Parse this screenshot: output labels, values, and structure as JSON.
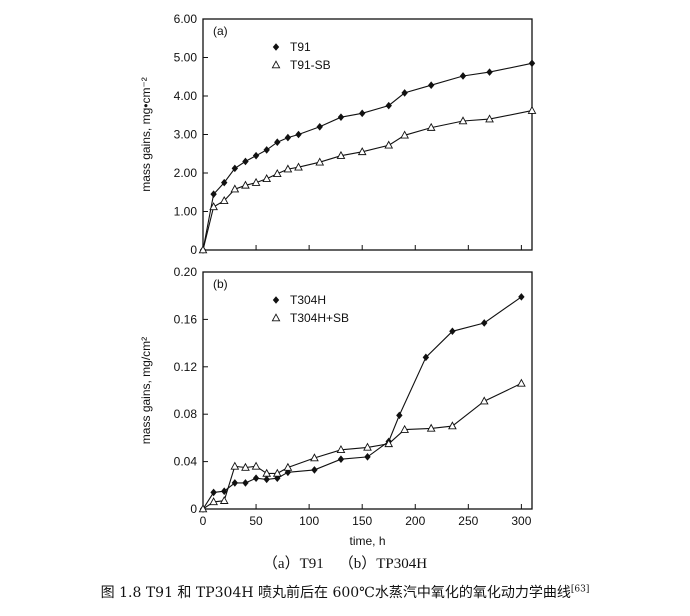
{
  "chart_data": [
    {
      "type": "line",
      "panel_label": "(a)",
      "xlabel": "",
      "ylabel": "mass gains, mg•cm⁻²",
      "xlim": [
        0,
        310
      ],
      "ylim": [
        0,
        6
      ],
      "yticks": [
        "0",
        "1.00",
        "2.00",
        "3.00",
        "4.00",
        "5.00",
        "6.00"
      ],
      "ytick_values": [
        0,
        1,
        2,
        3,
        4,
        5,
        6
      ],
      "xticks": [
        0,
        50,
        100,
        150,
        200,
        250,
        300
      ],
      "show_xtick_labels": false,
      "legend_position": "top-left",
      "series": [
        {
          "name": "T91",
          "marker": "diamond",
          "x": [
            0,
            10,
            20,
            30,
            40,
            50,
            60,
            70,
            80,
            90,
            110,
            130,
            150,
            175,
            190,
            215,
            245,
            270,
            310
          ],
          "y": [
            0,
            1.45,
            1.75,
            2.12,
            2.3,
            2.45,
            2.6,
            2.8,
            2.92,
            3.0,
            3.2,
            3.45,
            3.55,
            3.75,
            4.08,
            4.28,
            4.52,
            4.62,
            4.85
          ]
        },
        {
          "name": "T91-SB",
          "marker": "triangle",
          "x": [
            0,
            10,
            20,
            30,
            40,
            50,
            60,
            70,
            80,
            90,
            110,
            130,
            150,
            175,
            190,
            215,
            245,
            270,
            310
          ],
          "y": [
            0,
            1.12,
            1.28,
            1.58,
            1.68,
            1.75,
            1.85,
            1.98,
            2.1,
            2.15,
            2.28,
            2.45,
            2.55,
            2.72,
            2.98,
            3.18,
            3.35,
            3.4,
            3.62
          ]
        }
      ]
    },
    {
      "type": "line",
      "panel_label": "(b)",
      "xlabel": "time, h",
      "ylabel": "mass gains, mg/cm²",
      "xlim": [
        0,
        310
      ],
      "ylim": [
        0,
        0.2
      ],
      "yticks": [
        "0",
        "0.04",
        "0.08",
        "0.12",
        "0.16",
        "0.20"
      ],
      "ytick_values": [
        0,
        0.04,
        0.08,
        0.12,
        0.16,
        0.2
      ],
      "xticks": [
        0,
        50,
        100,
        150,
        200,
        250,
        300
      ],
      "show_xtick_labels": true,
      "legend_position": "top-left",
      "series": [
        {
          "name": "T304H",
          "marker": "diamond",
          "x": [
            0,
            10,
            20,
            30,
            40,
            50,
            60,
            70,
            80,
            105,
            130,
            155,
            175,
            185,
            210,
            235,
            265,
            300
          ],
          "y": [
            0,
            0.014,
            0.015,
            0.022,
            0.022,
            0.026,
            0.025,
            0.026,
            0.031,
            0.033,
            0.042,
            0.044,
            0.057,
            0.079,
            0.128,
            0.15,
            0.157,
            0.179
          ]
        },
        {
          "name": "T304H+SB",
          "marker": "triangle",
          "x": [
            0,
            10,
            20,
            30,
            40,
            50,
            60,
            70,
            80,
            105,
            130,
            155,
            175,
            190,
            215,
            235,
            265,
            300
          ],
          "y": [
            0,
            0.006,
            0.007,
            0.036,
            0.035,
            0.036,
            0.03,
            0.03,
            0.035,
            0.043,
            0.05,
            0.052,
            0.055,
            0.067,
            0.068,
            0.07,
            0.091,
            0.106
          ]
        }
      ]
    }
  ],
  "captions": {
    "sub": "（a）T91    （b）TP304H",
    "main": "图 1.8 T91 和 TP304H 喷丸前后在 600℃水蒸汽中氧化的氧化动力学曲线",
    "ref": "[63]"
  },
  "colors": {
    "ink": "#111111",
    "background": "#ffffff"
  }
}
